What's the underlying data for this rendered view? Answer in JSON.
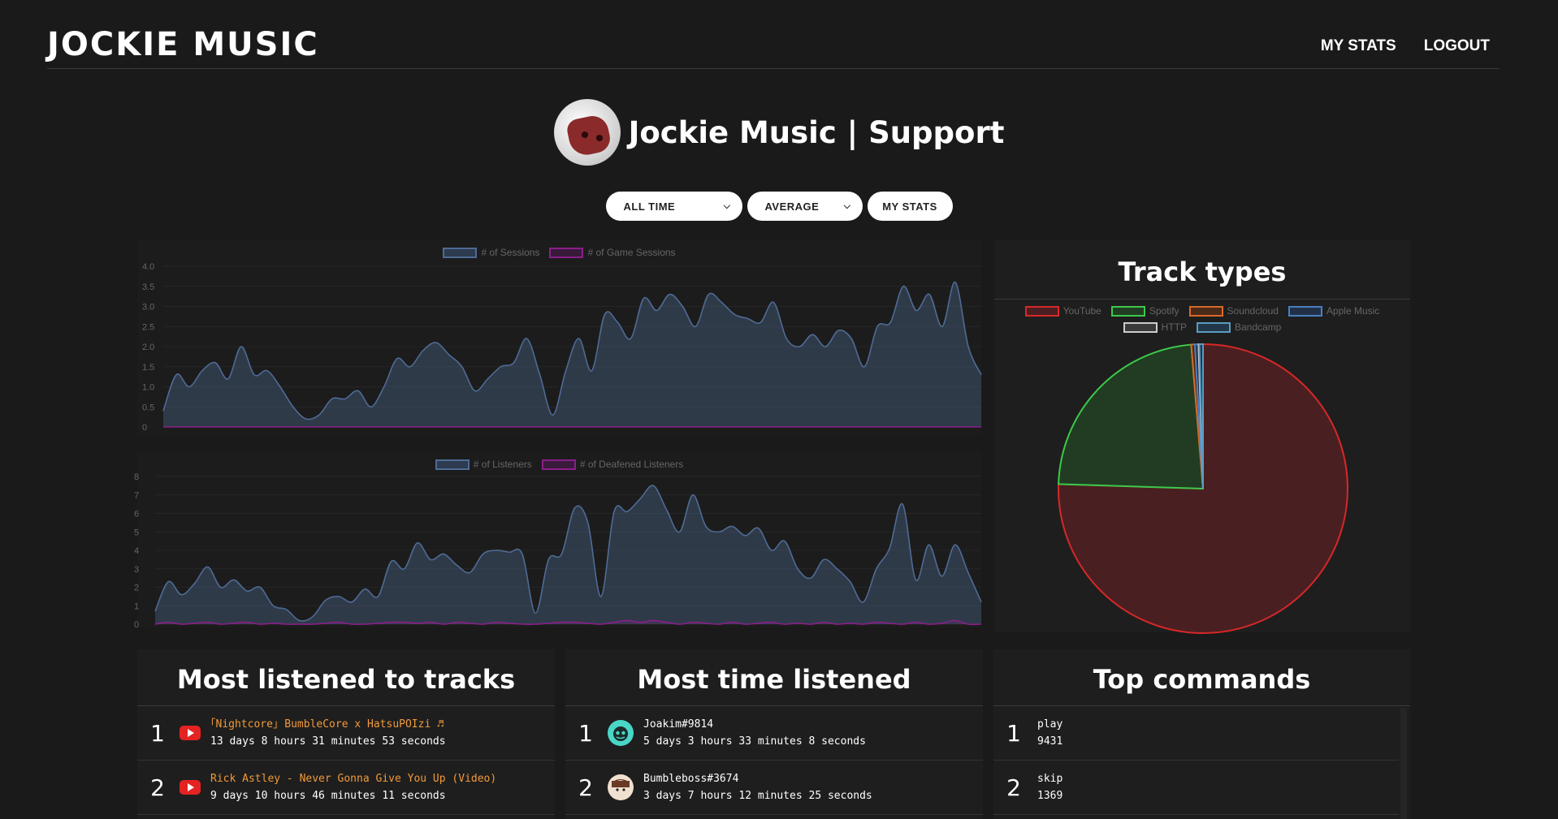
{
  "nav": {
    "brand": "JOCKIE MUSIC",
    "links": [
      "MY STATS",
      "LOGOUT"
    ]
  },
  "server": {
    "name": "Jockie Music | Support"
  },
  "controls": {
    "time_range": "ALL TIME",
    "aggregation": "AVERAGE",
    "my_stats": "MY STATS"
  },
  "colors": {
    "sessions": "#4e6b94",
    "game_sessions": "#8a1f8a",
    "youtube": "#d62828",
    "spotify": "#3cc94b",
    "soundcloud": "#d96a2b",
    "apple_music": "#4a7fc1",
    "http": "#cccccc",
    "bandcamp": "#5a9bc0"
  },
  "chart_data": [
    {
      "type": "area",
      "legend": [
        "# of Sessions",
        "# of Game Sessions"
      ],
      "yticks": [
        "4.0",
        "3.5",
        "3.0",
        "2.5",
        "2.0",
        "1.5",
        "1.0",
        "0.5",
        "0"
      ],
      "ylim": [
        0,
        4
      ],
      "series": [
        {
          "name": "# of Sessions",
          "values": [
            0.4,
            1.3,
            1.0,
            1.4,
            1.6,
            1.2,
            2.0,
            1.3,
            1.4,
            1.0,
            0.5,
            0.2,
            0.3,
            0.7,
            0.7,
            0.9,
            0.5,
            1.0,
            1.7,
            1.5,
            1.9,
            2.1,
            1.8,
            1.5,
            0.9,
            1.2,
            1.5,
            1.6,
            2.2,
            1.3,
            0.3,
            1.4,
            2.2,
            1.4,
            2.8,
            2.6,
            2.2,
            3.2,
            2.9,
            3.3,
            3.0,
            2.5,
            3.3,
            3.1,
            2.8,
            2.7,
            2.6,
            3.1,
            2.2,
            2.0,
            2.3,
            2.0,
            2.4,
            2.2,
            1.5,
            2.5,
            2.6,
            3.5,
            2.9,
            3.3,
            2.5,
            3.6,
            2.0,
            1.3
          ]
        },
        {
          "name": "# of Game Sessions",
          "values": [
            0,
            0,
            0,
            0,
            0,
            0,
            0,
            0,
            0,
            0,
            0,
            0,
            0,
            0,
            0,
            0,
            0,
            0,
            0,
            0,
            0,
            0,
            0,
            0,
            0,
            0,
            0,
            0,
            0,
            0,
            0,
            0,
            0,
            0,
            0,
            0,
            0,
            0,
            0,
            0,
            0,
            0,
            0,
            0,
            0,
            0,
            0,
            0,
            0,
            0,
            0,
            0,
            0,
            0,
            0,
            0,
            0,
            0,
            0,
            0,
            0,
            0,
            0,
            0
          ]
        }
      ]
    },
    {
      "type": "area",
      "legend": [
        "# of Listeners",
        "# of Deafened Listeners"
      ],
      "yticks": [
        "8",
        "7",
        "6",
        "5",
        "4",
        "3",
        "2",
        "1",
        "0"
      ],
      "ylim": [
        0,
        8
      ],
      "series": [
        {
          "name": "# of Listeners",
          "values": [
            0.7,
            2.3,
            1.6,
            2.2,
            3.1,
            2.0,
            2.4,
            1.8,
            2.0,
            1.0,
            0.8,
            0.2,
            0.4,
            1.3,
            1.5,
            1.2,
            1.9,
            1.5,
            3.4,
            3.0,
            4.4,
            3.5,
            3.8,
            3.2,
            2.8,
            3.8,
            4.0,
            3.9,
            3.8,
            0.6,
            3.5,
            3.8,
            6.3,
            5.5,
            1.5,
            6.1,
            6.1,
            6.8,
            7.5,
            6.2,
            5.0,
            7.0,
            5.3,
            5.0,
            5.3,
            4.8,
            5.2,
            4.0,
            4.5,
            3.0,
            2.5,
            3.5,
            3.0,
            2.3,
            1.2,
            3.0,
            4.1,
            6.5,
            2.4,
            4.3,
            2.6,
            4.3,
            2.8,
            1.2
          ]
        },
        {
          "name": "# of Deafened Listeners",
          "values": [
            0,
            0.1,
            0,
            0.05,
            0.1,
            0,
            0.05,
            0.1,
            0,
            0.05,
            0,
            0,
            0,
            0.05,
            0.1,
            0,
            0,
            0.05,
            0.1,
            0.1,
            0.05,
            0.1,
            0,
            0.1,
            0.05,
            0,
            0.1,
            0.05,
            0,
            0,
            0.05,
            0.1,
            0.1,
            0.05,
            0,
            0.1,
            0.2,
            0.1,
            0.2,
            0.1,
            0,
            0.1,
            0.05,
            0,
            0.1,
            0,
            0.05,
            0.1,
            0,
            0.05,
            0,
            0.1,
            0,
            0.05,
            0,
            0.1,
            0.05,
            0,
            0.1,
            0,
            0.05,
            0.2,
            0,
            0
          ]
        }
      ]
    },
    {
      "type": "pie",
      "title": "Track types",
      "labels": [
        "YouTube",
        "Spotify",
        "Soundcloud",
        "Apple Music",
        "HTTP",
        "Bandcamp"
      ],
      "values": [
        75.5,
        23.2,
        0.4,
        0.4,
        0.1,
        0.4
      ]
    }
  ],
  "tracks": {
    "title": "Most listened to tracks",
    "items": [
      {
        "rank": "1",
        "name": "｢Nightcore｣ BumbleCore x HatsuPOIzi ♬",
        "duration": "13 days 8 hours 31 minutes 53 seconds"
      },
      {
        "rank": "2",
        "name": "Rick Astley - Never Gonna Give You Up (Video)",
        "duration": "9 days 10 hours 46 minutes 11 seconds"
      }
    ]
  },
  "listeners": {
    "title": "Most time listened",
    "items": [
      {
        "rank": "1",
        "name": "Joakim#9814",
        "duration": "5 days 3 hours 33 minutes 8 seconds"
      },
      {
        "rank": "2",
        "name": "Bumbleboss#3674",
        "duration": "3 days 7 hours 12 minutes 25 seconds"
      }
    ]
  },
  "commands": {
    "title": "Top commands",
    "items": [
      {
        "rank": "1",
        "name": "play",
        "count": "9431"
      },
      {
        "rank": "2",
        "name": "skip",
        "count": "1369"
      }
    ]
  }
}
